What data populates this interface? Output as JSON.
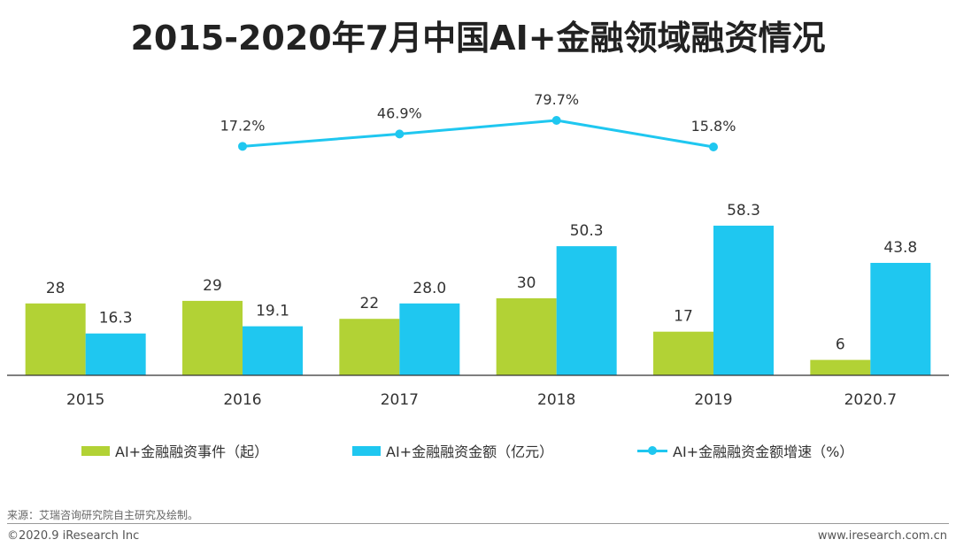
{
  "title": "2015-2020年7月中国AI+金融领域融资情况",
  "colors": {
    "events": "#b2d235",
    "amount": "#1fc7f0",
    "growth": "#1fc7f0",
    "axis": "#333333",
    "label": "#333333"
  },
  "chart_data": {
    "type": "bar",
    "categories": [
      "2015",
      "2016",
      "2017",
      "2018",
      "2019",
      "2020.7"
    ],
    "series": [
      {
        "name": "AI+金融融资事件（起）",
        "type": "bar",
        "values": [
          28,
          29,
          22,
          30,
          17,
          6
        ]
      },
      {
        "name": "AI+金融融资金额（亿元）",
        "type": "bar",
        "values": [
          16.3,
          19.1,
          28.0,
          50.3,
          58.3,
          43.8
        ]
      },
      {
        "name": "AI+金融融资金额增速（%）",
        "type": "line",
        "values": [
          null,
          17.2,
          46.9,
          79.7,
          15.8,
          null
        ]
      }
    ],
    "value_labels": {
      "events": [
        "28",
        "29",
        "22",
        "30",
        "17",
        "6"
      ],
      "amount": [
        "16.3",
        "19.1",
        "28.0",
        "50.3",
        "58.3",
        "43.8"
      ],
      "growth": [
        "",
        "17.2%",
        "46.9%",
        "79.7%",
        "15.8%",
        ""
      ]
    },
    "legend_position": "bottom",
    "grid": false
  },
  "legend": [
    {
      "label": "AI+金融融资事件（起）"
    },
    {
      "label": "AI+金融融资金额（亿元）"
    },
    {
      "label": "AI+金融融资金额增速（%）"
    }
  ],
  "source": "来源：艾瑞咨询研究院自主研究及绘制。",
  "footer": {
    "copyright": "©2020.9 iResearch Inc",
    "website": "www.iresearch.com.cn"
  }
}
